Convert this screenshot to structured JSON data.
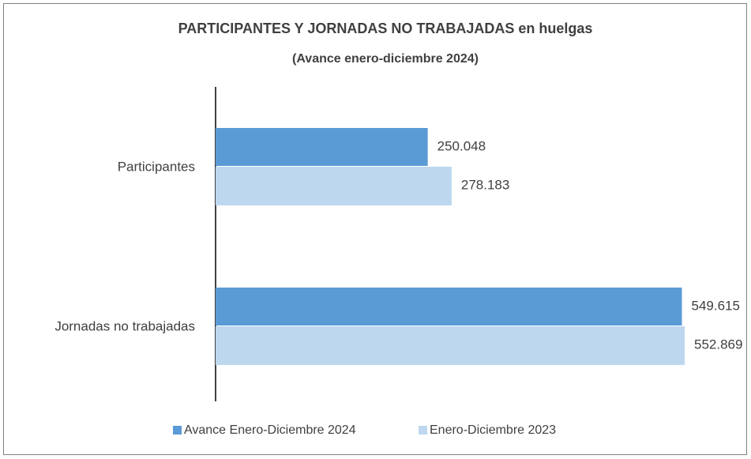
{
  "chart_data": {
    "type": "bar",
    "orientation": "horizontal",
    "title": "PARTICIPANTES  Y JORNADAS NO TRABAJADAS  en huelgas",
    "subtitle": "(Avance enero-diciembre 2024)",
    "categories": [
      "Participantes",
      "Jornadas no trabajadas"
    ],
    "series": [
      {
        "name": "Avance Enero-Diciembre 2024",
        "color": "#5b9bd5",
        "values": [
          250048,
          549615
        ],
        "value_labels": [
          "250.048",
          "549.615"
        ]
      },
      {
        "name": "Enero-Diciembre 2023",
        "color": "#bdd7ee",
        "values": [
          278183,
          552869
        ],
        "value_labels": [
          "278.183",
          "552.869"
        ]
      }
    ],
    "legend": "bottom"
  }
}
